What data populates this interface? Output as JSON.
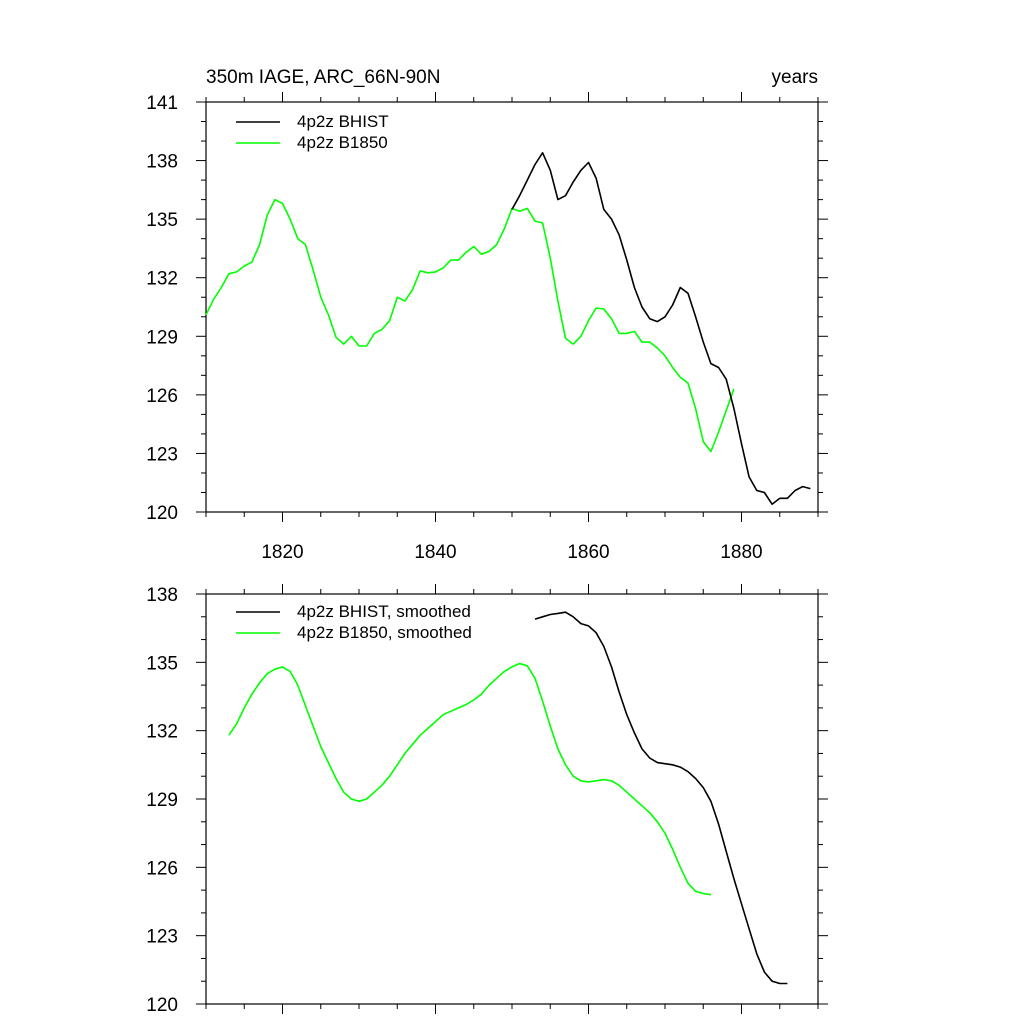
{
  "colors": {
    "bhist": "#000000",
    "b1850": "#00ff00",
    "frame": "#000000",
    "background": "#ffffff"
  },
  "chart_data": [
    {
      "type": "line",
      "title": "350m IAGE, ARC_66N-90N",
      "title_right": "years",
      "xlabel": "",
      "ylabel": "",
      "xlim": [
        1810,
        1890
      ],
      "ylim": [
        120,
        141
      ],
      "yticks": [
        120,
        123,
        126,
        129,
        132,
        135,
        138,
        141
      ],
      "xticks": [
        1820,
        1840,
        1860,
        1880
      ],
      "xtick_labels_shown": true,
      "legend_position": "top-left",
      "grid": false,
      "series": [
        {
          "name": "4p2z BHIST",
          "color": "#000000",
          "x": [
            1850,
            1851,
            1852,
            1853,
            1854,
            1855,
            1856,
            1857,
            1858,
            1859,
            1860,
            1861,
            1862,
            1863,
            1864,
            1865,
            1866,
            1867,
            1868,
            1869,
            1870,
            1871,
            1872,
            1873,
            1874,
            1875,
            1876,
            1877,
            1878,
            1879,
            1880,
            1881,
            1882,
            1883,
            1884,
            1885,
            1886,
            1887,
            1888,
            1889
          ],
          "y": [
            135.5,
            136.2,
            137.0,
            137.8,
            138.4,
            137.5,
            136.0,
            136.2,
            136.9,
            137.5,
            137.9,
            137.1,
            135.5,
            135.0,
            134.2,
            132.9,
            131.5,
            130.5,
            129.9,
            129.75,
            130.0,
            130.6,
            131.5,
            131.2,
            130.0,
            128.7,
            127.6,
            127.4,
            126.8,
            125.3,
            123.5,
            121.8,
            121.1,
            121.0,
            120.4,
            120.7,
            120.7,
            121.1,
            121.3,
            121.2
          ]
        },
        {
          "name": "4p2z B1850",
          "color": "#00ff00",
          "x": [
            1810,
            1811,
            1812,
            1813,
            1814,
            1815,
            1816,
            1817,
            1818,
            1819,
            1820,
            1821,
            1822,
            1823,
            1824,
            1825,
            1826,
            1827,
            1828,
            1829,
            1830,
            1831,
            1832,
            1833,
            1834,
            1835,
            1836,
            1837,
            1838,
            1839,
            1840,
            1841,
            1842,
            1843,
            1844,
            1845,
            1846,
            1847,
            1848,
            1849,
            1850,
            1851,
            1852,
            1853,
            1854,
            1855,
            1856,
            1857,
            1858,
            1859,
            1860,
            1861,
            1862,
            1863,
            1864,
            1865,
            1866,
            1867,
            1868,
            1869,
            1870,
            1871,
            1872,
            1873,
            1874,
            1875,
            1876,
            1877,
            1878,
            1879
          ],
          "y": [
            130.1,
            130.9,
            131.5,
            132.2,
            132.3,
            132.6,
            132.8,
            133.7,
            135.2,
            136.0,
            135.8,
            135.0,
            134.0,
            133.7,
            132.4,
            131.0,
            130.1,
            128.95,
            128.6,
            129.0,
            128.5,
            128.5,
            129.15,
            129.35,
            129.8,
            131.0,
            130.8,
            131.4,
            132.35,
            132.25,
            132.3,
            132.5,
            132.9,
            132.9,
            133.3,
            133.6,
            133.2,
            133.35,
            133.7,
            134.5,
            135.55,
            135.4,
            135.55,
            134.9,
            134.8,
            133.0,
            130.8,
            128.9,
            128.6,
            129.0,
            129.8,
            130.45,
            130.4,
            129.9,
            129.15,
            129.15,
            129.25,
            128.7,
            128.7,
            128.4,
            128.0,
            127.4,
            126.9,
            126.6,
            125.3,
            123.6,
            123.1,
            124.1,
            125.2,
            126.3
          ]
        }
      ]
    },
    {
      "type": "line",
      "title": "",
      "xlabel": "",
      "ylabel": "",
      "xlim": [
        1810,
        1890
      ],
      "ylim": [
        120,
        138
      ],
      "yticks": [
        120,
        123,
        126,
        129,
        132,
        135,
        138
      ],
      "xticks": [
        1820,
        1840,
        1860,
        1880
      ],
      "xtick_labels_shown": false,
      "legend_position": "top-left",
      "grid": false,
      "series": [
        {
          "name": "4p2z BHIST, smoothed",
          "color": "#000000",
          "x": [
            1853,
            1854,
            1855,
            1856,
            1857,
            1858,
            1859,
            1860,
            1861,
            1862,
            1863,
            1864,
            1865,
            1866,
            1867,
            1868,
            1869,
            1870,
            1871,
            1872,
            1873,
            1874,
            1875,
            1876,
            1877,
            1878,
            1879,
            1880,
            1881,
            1882,
            1883,
            1884,
            1885,
            1886
          ],
          "y": [
            136.9,
            137.0,
            137.1,
            137.15,
            137.2,
            137.0,
            136.7,
            136.6,
            136.3,
            135.7,
            134.8,
            133.7,
            132.7,
            131.9,
            131.2,
            130.8,
            130.6,
            130.55,
            130.5,
            130.4,
            130.2,
            129.9,
            129.5,
            128.9,
            127.9,
            126.7,
            125.5,
            124.4,
            123.3,
            122.2,
            121.4,
            121.0,
            120.9,
            120.9
          ]
        },
        {
          "name": "4p2z B1850, smoothed",
          "color": "#00ff00",
          "x": [
            1813,
            1814,
            1815,
            1816,
            1817,
            1818,
            1819,
            1820,
            1821,
            1822,
            1823,
            1824,
            1825,
            1826,
            1827,
            1828,
            1829,
            1830,
            1831,
            1832,
            1833,
            1834,
            1835,
            1836,
            1837,
            1838,
            1839,
            1840,
            1841,
            1842,
            1843,
            1844,
            1845,
            1846,
            1847,
            1848,
            1849,
            1850,
            1851,
            1852,
            1853,
            1854,
            1855,
            1856,
            1857,
            1858,
            1859,
            1860,
            1861,
            1862,
            1863,
            1864,
            1865,
            1866,
            1867,
            1868,
            1869,
            1870,
            1871,
            1872,
            1873,
            1874,
            1875,
            1876
          ],
          "y": [
            131.8,
            132.3,
            133.0,
            133.6,
            134.1,
            134.5,
            134.7,
            134.8,
            134.6,
            134.0,
            133.1,
            132.2,
            131.3,
            130.6,
            129.9,
            129.3,
            129.0,
            128.9,
            129.0,
            129.3,
            129.6,
            130.0,
            130.5,
            131.0,
            131.4,
            131.8,
            132.1,
            132.4,
            132.7,
            132.85,
            133.0,
            133.15,
            133.35,
            133.6,
            134.0,
            134.3,
            134.6,
            134.8,
            134.95,
            134.85,
            134.3,
            133.3,
            132.2,
            131.2,
            130.5,
            130.0,
            129.8,
            129.75,
            129.8,
            129.85,
            129.8,
            129.6,
            129.3,
            129.0,
            128.7,
            128.4,
            128.0,
            127.5,
            126.8,
            126.0,
            125.3,
            124.95,
            124.85,
            124.8
          ]
        }
      ]
    }
  ]
}
